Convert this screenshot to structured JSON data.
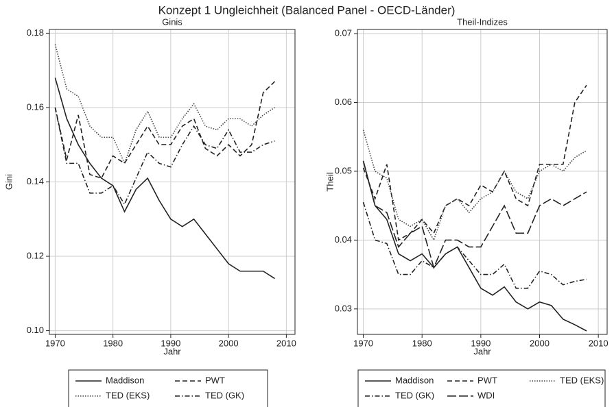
{
  "title": "Konzept 1 Ungleichheit (Balanced Panel - OECD-Länder)",
  "chart_data": [
    {
      "type": "line",
      "title": "Ginis",
      "x_label": "Jahr",
      "y_label": "Gini",
      "x": [
        1970,
        1972,
        1974,
        1976,
        1978,
        1980,
        1982,
        1984,
        1986,
        1988,
        1990,
        1992,
        1994,
        1996,
        1998,
        2000,
        2002,
        2004,
        2006,
        2008
      ],
      "xlim": [
        1969,
        2011.5
      ],
      "xticks": [
        1970,
        1980,
        1990,
        2000,
        2010
      ],
      "ylim": [
        0.099,
        0.181
      ],
      "yticks": [
        {
          "value": 0.1,
          "label": "0.10"
        },
        0.12,
        0.14,
        0.16,
        0.18
      ],
      "grid": true,
      "series": [
        {
          "name": "Maddison",
          "color": "#222",
          "style": "solid",
          "values": [
            0.168,
            0.157,
            0.15,
            0.145,
            0.141,
            0.139,
            0.132,
            0.138,
            0.141,
            0.135,
            0.13,
            0.128,
            0.13,
            0.126,
            0.122,
            0.118,
            0.116,
            0.116,
            0.116,
            0.114
          ]
        },
        {
          "name": "PWT",
          "color": "#222",
          "style": "dash",
          "values": [
            0.16,
            0.146,
            0.158,
            0.142,
            0.141,
            0.147,
            0.145,
            0.15,
            0.155,
            0.15,
            0.15,
            0.155,
            0.157,
            0.149,
            0.147,
            0.15,
            0.147,
            0.15,
            0.164,
            0.167
          ]
        },
        {
          "name": "TED (EKS)",
          "color": "#444",
          "style": "dot",
          "values": [
            0.177,
            0.165,
            0.163,
            0.155,
            0.152,
            0.152,
            0.145,
            0.154,
            0.159,
            0.152,
            0.152,
            0.157,
            0.161,
            0.155,
            0.154,
            0.157,
            0.157,
            0.155,
            0.158,
            0.16
          ]
        },
        {
          "name": "TED (GK)",
          "color": "#222",
          "style": "dashdot",
          "values": [
            0.16,
            0.145,
            0.145,
            0.137,
            0.137,
            0.139,
            0.134,
            0.141,
            0.148,
            0.145,
            0.144,
            0.15,
            0.155,
            0.15,
            0.149,
            0.154,
            0.148,
            0.148,
            0.15,
            0.151
          ]
        }
      ]
    },
    {
      "type": "line",
      "title": "Theil-Indizes",
      "x_label": "Jahr",
      "y_label": "Theil",
      "x": [
        1970,
        1972,
        1974,
        1976,
        1978,
        1980,
        1982,
        1984,
        1986,
        1988,
        1990,
        1992,
        1994,
        1996,
        1998,
        2000,
        2002,
        2004,
        2006,
        2008
      ],
      "xlim": [
        1969,
        2011.5
      ],
      "xticks": [
        1970,
        1980,
        1990,
        2000,
        2010
      ],
      "ylim": [
        0.0263,
        0.0706
      ],
      "yticks": [
        0.03,
        0.04,
        0.05,
        0.06,
        0.07
      ],
      "grid": true,
      "series": [
        {
          "name": "Maddison",
          "color": "#222",
          "style": "solid",
          "values": [
            0.0515,
            0.045,
            0.043,
            0.038,
            0.037,
            0.038,
            0.036,
            0.038,
            0.039,
            0.036,
            0.033,
            0.032,
            0.0332,
            0.031,
            0.03,
            0.031,
            0.0305,
            0.0285,
            0.0277,
            0.0268
          ]
        },
        {
          "name": "PWT",
          "color": "#222",
          "style": "dash",
          "values": [
            0.0505,
            0.046,
            0.051,
            0.04,
            0.041,
            0.043,
            0.041,
            0.045,
            0.046,
            0.045,
            0.048,
            0.047,
            0.05,
            0.046,
            0.045,
            0.051,
            0.051,
            0.051,
            0.06,
            0.0625
          ]
        },
        {
          "name": "TED (EKS)",
          "color": "#444",
          "style": "dot",
          "values": [
            0.056,
            0.05,
            0.049,
            0.043,
            0.042,
            0.043,
            0.04,
            0.045,
            0.046,
            0.044,
            0.046,
            0.047,
            0.05,
            0.047,
            0.046,
            0.05,
            0.051,
            0.05,
            0.052,
            0.053
          ]
        },
        {
          "name": "TED (GK)",
          "color": "#222",
          "style": "dashdot",
          "values": [
            0.0455,
            0.04,
            0.0395,
            0.035,
            0.035,
            0.037,
            0.036,
            0.038,
            0.039,
            0.037,
            0.035,
            0.035,
            0.0365,
            0.033,
            0.033,
            0.0355,
            0.035,
            0.0335,
            0.034,
            0.0343
          ]
        },
        {
          "name": "WDI",
          "color": "#222",
          "style": "longdash",
          "values": [
            0.0515,
            0.045,
            0.044,
            0.039,
            0.041,
            0.042,
            0.036,
            0.04,
            0.04,
            0.039,
            0.039,
            0.042,
            0.045,
            0.041,
            0.041,
            0.045,
            0.046,
            0.045,
            0.046,
            0.047
          ]
        }
      ]
    }
  ]
}
